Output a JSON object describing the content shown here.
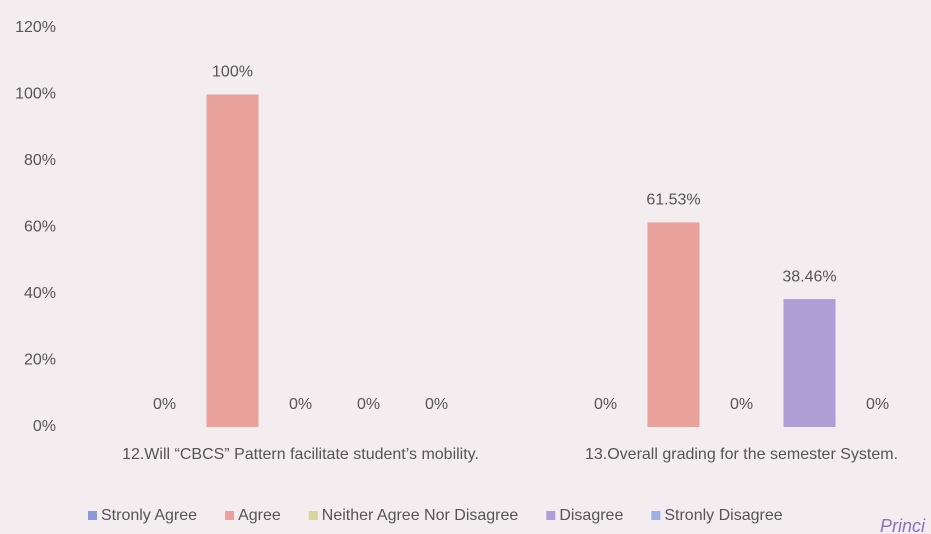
{
  "chart_data": {
    "type": "bar",
    "categories": [
      "12.Will “CBCS” Pattern facilitate student’s mobility.",
      "13.Overall grading for the semester System."
    ],
    "series": [
      {
        "name": "Stronly Agree",
        "color": "#8e98d4",
        "values": [
          0,
          0
        ],
        "value_labels": [
          "0%",
          "0%"
        ]
      },
      {
        "name": "Agree",
        "color": "#e9a19b",
        "values": [
          100,
          61.53
        ],
        "value_labels": [
          "100%",
          "61.53%"
        ]
      },
      {
        "name": "Neither Agree Nor Disagree",
        "color": "#d8d69c",
        "values": [
          0,
          0
        ],
        "value_labels": [
          "0%",
          "0%"
        ]
      },
      {
        "name": "Disagree",
        "color": "#ad9fd6",
        "values": [
          0,
          38.46
        ],
        "value_labels": [
          "0%",
          "38.46%"
        ]
      },
      {
        "name": "Stronly Disagree",
        "color": "#9cb0e2",
        "values": [
          0,
          0
        ],
        "value_labels": [
          "0%",
          "0%"
        ]
      }
    ],
    "ylim": [
      0,
      120
    ],
    "yticks": [
      {
        "value": 0,
        "label": "0%"
      },
      {
        "value": 20,
        "label": "20%"
      },
      {
        "value": 40,
        "label": "40%"
      },
      {
        "value": 60,
        "label": "60%"
      },
      {
        "value": 80,
        "label": "80%"
      },
      {
        "value": 100,
        "label": "100%"
      },
      {
        "value": 120,
        "label": "120%"
      }
    ],
    "grid": false,
    "legend": "bottom",
    "annotation": "Princi"
  }
}
